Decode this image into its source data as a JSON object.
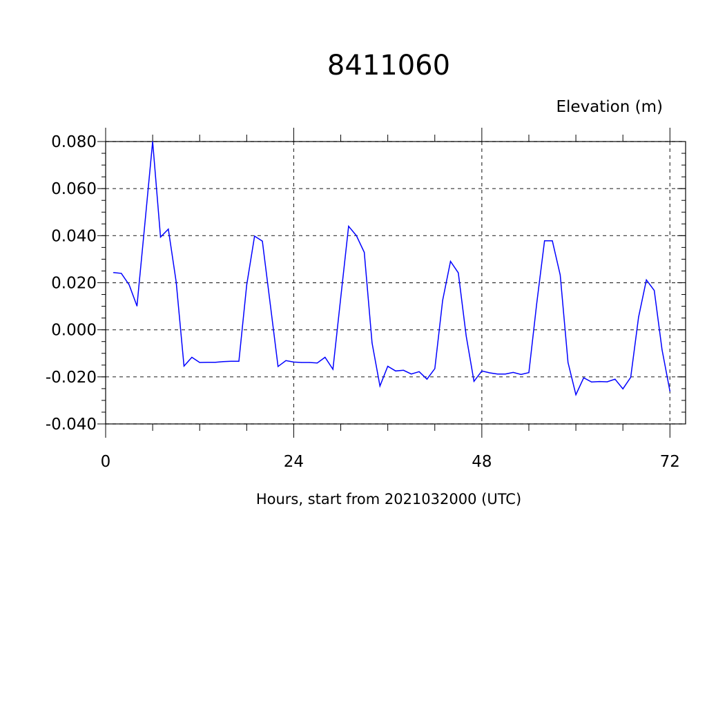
{
  "chart_data": {
    "type": "line",
    "title": "8411060",
    "ylabel": "Elevation (m)",
    "xlabel": "Hours, start from 2021032000 (UTC)",
    "xlim": [
      0,
      74
    ],
    "ylim": [
      -0.04,
      0.08
    ],
    "xticks": [
      0,
      24,
      48,
      72
    ],
    "xtick_labels": [
      "0",
      "24",
      "48",
      "72"
    ],
    "yticks": [
      -0.04,
      -0.02,
      0.0,
      0.02,
      0.04,
      0.06,
      0.08
    ],
    "ytick_labels": [
      "-0.040",
      "-0.020",
      "0.000",
      "0.020",
      "0.040",
      "0.060",
      "0.080"
    ],
    "grid": true,
    "line_color": "#0000ff",
    "series": [
      {
        "x": [
          1,
          2,
          3,
          4,
          5,
          6,
          7,
          8,
          9,
          10,
          11,
          12,
          13,
          14,
          15,
          16,
          17,
          18,
          19,
          20,
          21,
          22,
          23,
          24,
          25,
          26,
          27,
          28,
          29,
          30,
          31,
          32,
          33,
          34,
          35,
          36,
          37,
          38,
          39,
          40,
          41,
          42,
          43,
          44,
          45,
          46,
          47,
          48,
          49,
          50,
          51,
          52,
          53,
          54,
          55,
          56,
          57,
          58,
          59,
          60,
          61,
          62,
          63,
          64,
          65,
          66,
          67,
          68,
          69,
          70,
          71,
          72
        ],
        "y": [
          0.0243,
          0.024,
          0.0191,
          0.0101,
          0.045,
          0.08,
          0.0394,
          0.0428,
          0.0203,
          -0.0154,
          -0.0117,
          -0.0139,
          -0.0138,
          -0.0138,
          -0.0135,
          -0.0134,
          -0.0134,
          0.019,
          0.0398,
          0.0377,
          0.011,
          -0.0156,
          -0.0131,
          -0.0137,
          -0.0139,
          -0.0139,
          -0.0141,
          -0.0117,
          -0.0168,
          0.0136,
          0.044,
          0.04,
          0.0329,
          -0.0056,
          -0.0239,
          -0.0155,
          -0.0175,
          -0.0172,
          -0.0188,
          -0.0178,
          -0.021,
          -0.0165,
          0.0125,
          0.0291,
          0.0242,
          -0.0026,
          -0.0219,
          -0.0175,
          -0.0183,
          -0.0188,
          -0.0188,
          -0.0181,
          -0.019,
          -0.0182,
          0.011,
          0.0378,
          0.0378,
          0.0233,
          -0.0139,
          -0.0276,
          -0.0204,
          -0.0222,
          -0.022,
          -0.0221,
          -0.021,
          -0.0251,
          -0.0202,
          0.0054,
          0.0212,
          0.0167,
          -0.0085,
          -0.0261
        ]
      }
    ]
  }
}
